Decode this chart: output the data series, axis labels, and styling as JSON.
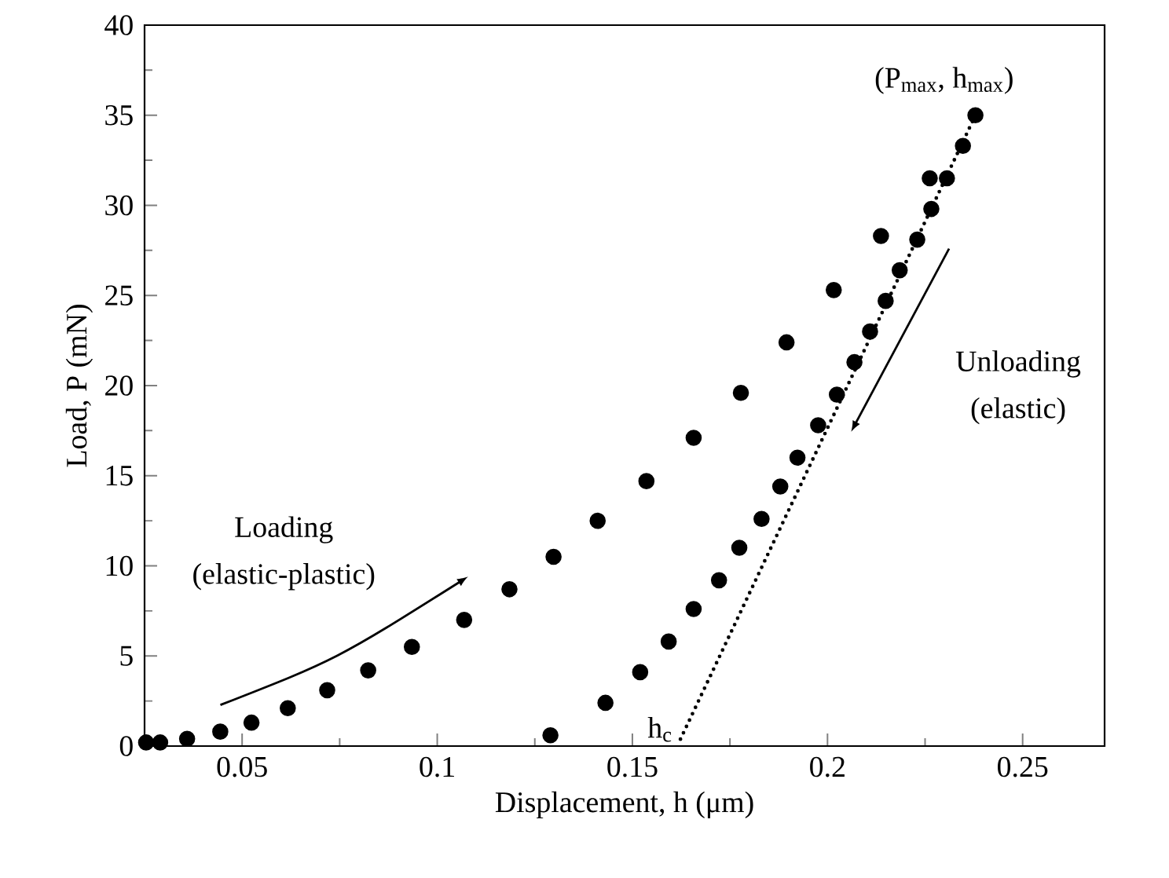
{
  "chart_data": {
    "type": "scatter",
    "xlabel": "Displacement, h (μm)",
    "ylabel": "Load, P (mN)",
    "xlim": [
      0.025,
      0.271
    ],
    "ylim": [
      0,
      40
    ],
    "xticks": [
      0.05,
      0.1,
      0.15,
      0.2,
      0.25
    ],
    "yticks": [
      0,
      5,
      10,
      15,
      20,
      25,
      30,
      35,
      40
    ],
    "grid": false,
    "series": [
      {
        "color": "#000000",
        "marker": "circle",
        "x": [
          0.0254,
          0.029,
          0.0359,
          0.0444,
          0.0524,
          0.0617,
          0.0718,
          0.0823,
          0.0935,
          0.1069,
          0.1185,
          0.1298,
          0.1411,
          0.1536,
          0.1657,
          0.1778,
          0.1895,
          0.2016,
          0.2137,
          0.2262,
          0.2379
        ],
        "values": [
          0.2,
          0.2,
          0.4,
          0.8,
          1.3,
          2.1,
          3.1,
          4.2,
          5.5,
          7.0,
          8.7,
          10.5,
          12.5,
          14.7,
          17.1,
          19.6,
          22.4,
          25.3,
          28.3,
          31.5,
          35.0
        ]
      },
      {
        "color": "#000000",
        "marker": "circle",
        "x": [
          0.2347,
          0.2306,
          0.2266,
          0.223,
          0.2185,
          0.2149,
          0.2109,
          0.2069,
          0.2024,
          0.1976,
          0.1923,
          0.1879,
          0.1831,
          0.1774,
          0.1722,
          0.1657,
          0.1593,
          0.152,
          0.1431,
          0.129
        ],
        "values": [
          33.3,
          31.5,
          29.8,
          28.1,
          26.4,
          24.7,
          23.0,
          21.3,
          19.5,
          17.8,
          16.0,
          14.4,
          12.6,
          11.0,
          9.2,
          7.6,
          5.8,
          4.1,
          2.4,
          0.6
        ]
      },
      {
        "type": "line",
        "line_style": "dotted",
        "marker": "none",
        "color": "#000000",
        "x": [
          0.2379,
          0.1617
        ],
        "values": [
          35.0,
          0.1
        ]
      }
    ],
    "annotations": [
      {
        "text": "(P$_{max}$, h$_{max}$)",
        "x": 0.2379,
        "y": 35.0
      },
      {
        "text": "h$_{c}$",
        "x": 0.1617,
        "y": 0.1
      },
      "Loading",
      "(elastic-plastic)",
      "Unloading",
      "(elastic)"
    ]
  }
}
